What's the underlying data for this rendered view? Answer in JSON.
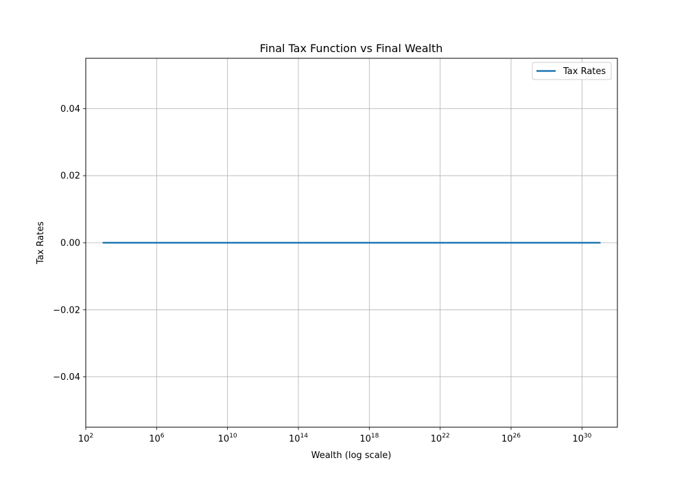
{
  "chart_data": {
    "type": "line",
    "title": "Final Tax Function vs Final Wealth",
    "xlabel": "Wealth (log scale)",
    "ylabel": "Tax Rates",
    "x_scale": "log",
    "x_exponent_range": [
      2,
      32
    ],
    "xlim": [
      100,
      1e+32
    ],
    "ylim": [
      -0.055,
      0.055
    ],
    "x_ticks": [
      {
        "base": "10",
        "exp": "2",
        "value": 100.0
      },
      {
        "base": "10",
        "exp": "6",
        "value": 1000000.0
      },
      {
        "base": "10",
        "exp": "10",
        "value": 10000000000.0
      },
      {
        "base": "10",
        "exp": "14",
        "value": 100000000000000.0
      },
      {
        "base": "10",
        "exp": "18",
        "value": 1e+18
      },
      {
        "base": "10",
        "exp": "22",
        "value": 1e+22
      },
      {
        "base": "10",
        "exp": "26",
        "value": 1e+26
      },
      {
        "base": "10",
        "exp": "30",
        "value": 1e+30
      }
    ],
    "y_ticks": [
      {
        "label": "−0.04",
        "value": -0.04
      },
      {
        "label": "−0.02",
        "value": -0.02
      },
      {
        "label": "0.00",
        "value": 0.0
      },
      {
        "label": "0.02",
        "value": 0.02
      },
      {
        "label": "0.04",
        "value": 0.04
      }
    ],
    "grid": true,
    "legend_position": "top-right",
    "series": [
      {
        "name": "Tax Rates",
        "color": "#1f77b4",
        "x": [
          1000.0,
          1e+31
        ],
        "y": [
          0.0,
          0.0
        ]
      }
    ]
  }
}
